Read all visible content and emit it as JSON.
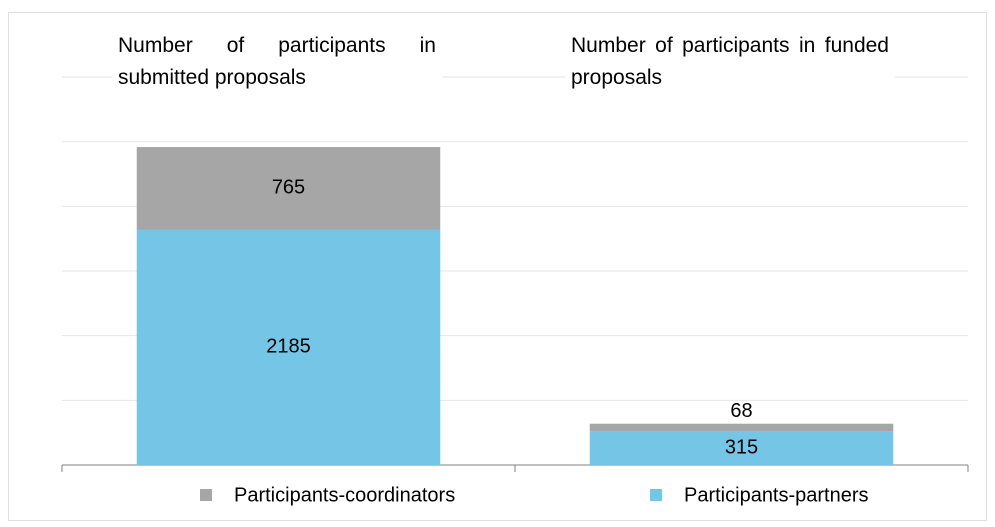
{
  "chart_data": {
    "type": "stacked_bar",
    "categories": [
      "Number of participants in submitted proposals",
      "Number of participants in funded proposals"
    ],
    "series": [
      {
        "name": "Participants-partners",
        "color": "#75c5e6",
        "values": [
          2185,
          315
        ]
      },
      {
        "name": "Participants-coordinators",
        "color": "#a6a6a6",
        "values": [
          765,
          68
        ]
      }
    ],
    "ylim": [
      0,
      3600
    ],
    "yticks": [
      0,
      600,
      1200,
      1800,
      2400,
      3000,
      3600
    ],
    "grid": true
  }
}
